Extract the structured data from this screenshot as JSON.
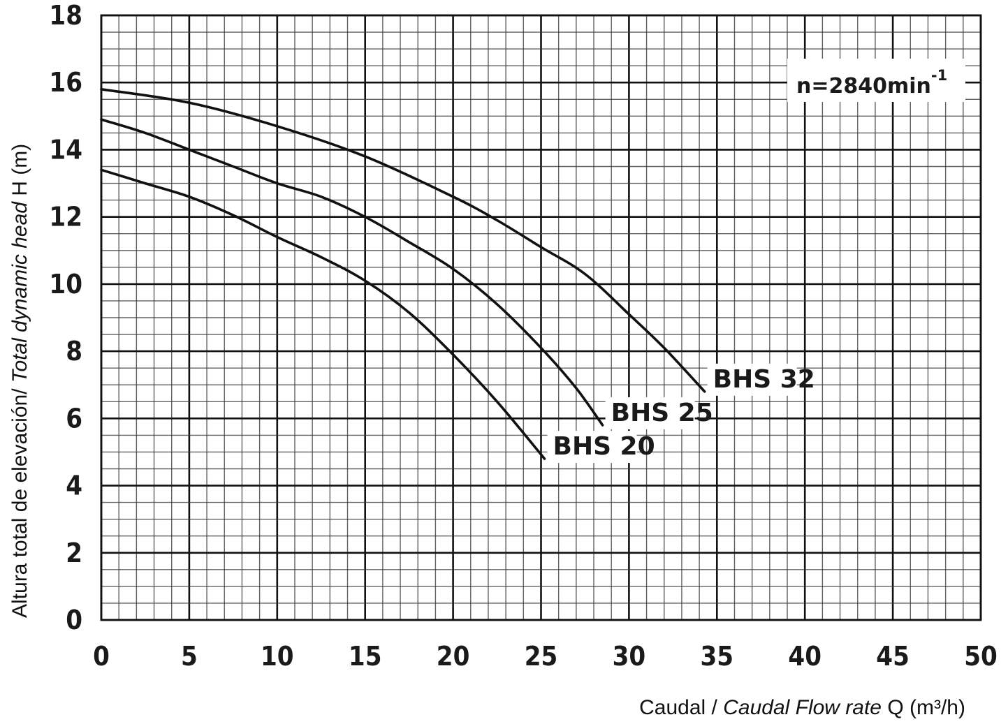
{
  "chart_data": {
    "type": "line",
    "xlabel_plain": "Caudal / ",
    "xlabel_italic": "Caudal Flow rate",
    "xlabel_unit": " Q (m³/h)",
    "ylabel_plain": "Altura total de elevación/ ",
    "ylabel_italic": "Total dynamic head",
    "ylabel_unit": " H (m)",
    "xlim": [
      0,
      50
    ],
    "ylim": [
      0,
      18
    ],
    "x_ticks": [
      "0",
      "5",
      "10",
      "15",
      "20",
      "25",
      "30",
      "35",
      "40",
      "45",
      "50"
    ],
    "y_ticks": [
      "0",
      "2",
      "4",
      "6",
      "8",
      "10",
      "12",
      "14",
      "16",
      "18"
    ],
    "grid": true,
    "annotation": {
      "text": "n=2840min",
      "superscript": "-1",
      "placement": "top-right"
    },
    "series": [
      {
        "name": "BHS 20",
        "x": [
          0,
          2.5,
          5,
          7.5,
          10,
          12.5,
          15,
          17.5,
          20,
          22.5,
          25.2
        ],
        "y": [
          13.4,
          13.0,
          12.6,
          12.05,
          11.4,
          10.8,
          10.1,
          9.15,
          7.9,
          6.5,
          4.8
        ]
      },
      {
        "name": "BHS 25",
        "x": [
          0,
          2.5,
          5,
          7.5,
          10,
          12.5,
          15,
          17.5,
          20,
          22.5,
          25,
          27,
          28.5
        ],
        "y": [
          14.9,
          14.5,
          14.0,
          13.5,
          13.0,
          12.6,
          12.0,
          11.25,
          10.45,
          9.4,
          8.1,
          6.9,
          5.8
        ]
      },
      {
        "name": "BHS 32",
        "x": [
          0,
          5,
          10,
          15,
          20,
          22.5,
          25,
          27.5,
          30,
          32,
          34.3
        ],
        "y": [
          15.8,
          15.4,
          14.7,
          13.8,
          12.6,
          11.9,
          11.1,
          10.3,
          9.1,
          8.1,
          6.8
        ]
      }
    ]
  }
}
